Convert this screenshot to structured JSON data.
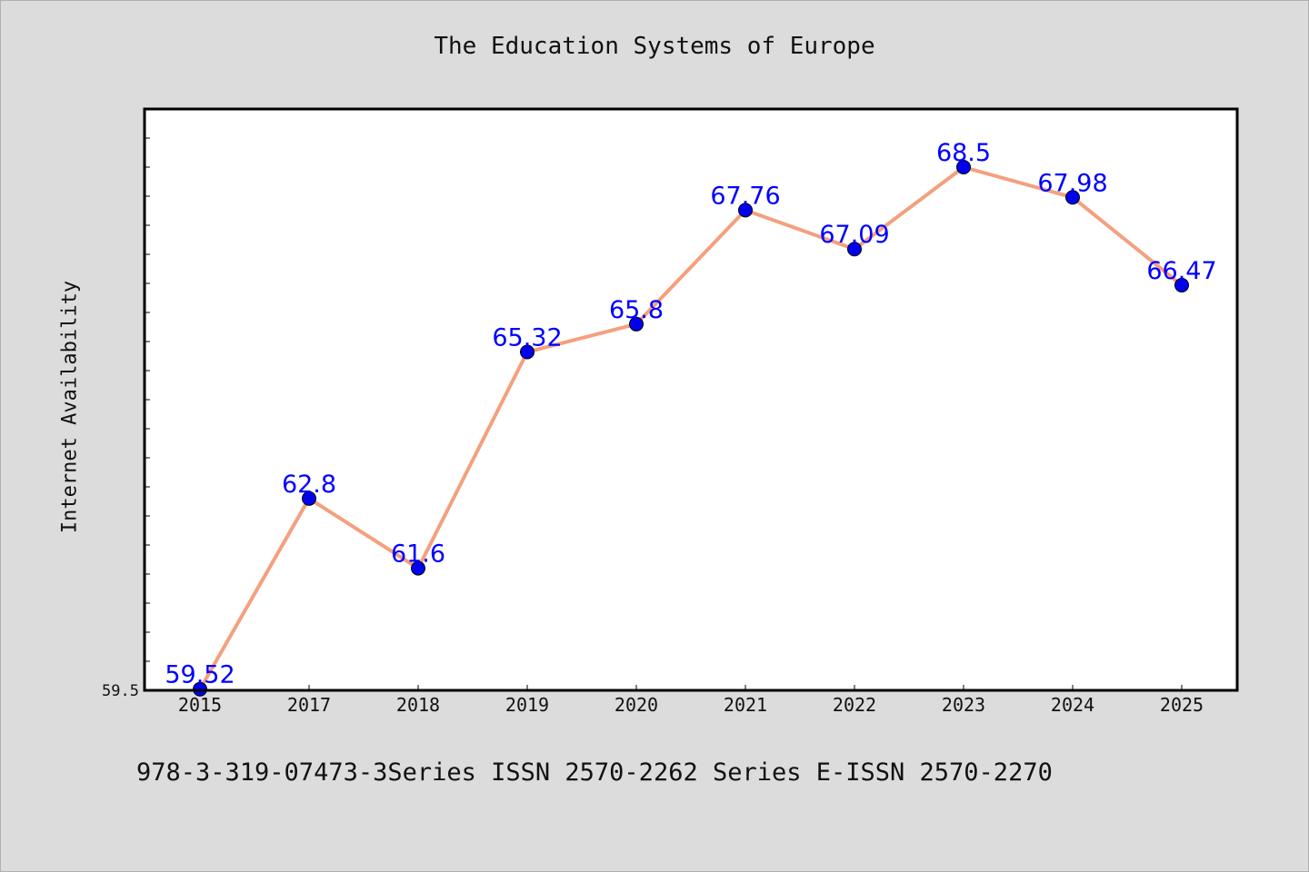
{
  "chart_data": {
    "type": "line",
    "title": "The Education Systems of Europe",
    "ylabel": "Internet Availability",
    "xlabel": "",
    "categories": [
      "2015",
      "2017",
      "2018",
      "2019",
      "2020",
      "2021",
      "2022",
      "2023",
      "2024",
      "2025"
    ],
    "series": [
      {
        "values": [
          59.52,
          62.8,
          61.6,
          65.32,
          65.8,
          67.76,
          67.09,
          68.5,
          67.98,
          66.47
        ],
        "labels": [
          "59.52",
          "62.8",
          "61.6",
          "65.32",
          "65.8",
          "67.76",
          "67.09",
          "68.5",
          "67.98",
          "66.47"
        ],
        "line_color": "#f4a07e",
        "marker_color": "#0000ee",
        "label_color": "#0000ff"
      }
    ],
    "ylim": [
      59.5,
      69.5
    ],
    "ytick_labels": [
      "59.5"
    ],
    "grid": false,
    "legend": false
  },
  "footer": {
    "text": "978-3-319-07473-3Series ISSN 2570-2262 Series E-ISSN 2570-2270"
  }
}
